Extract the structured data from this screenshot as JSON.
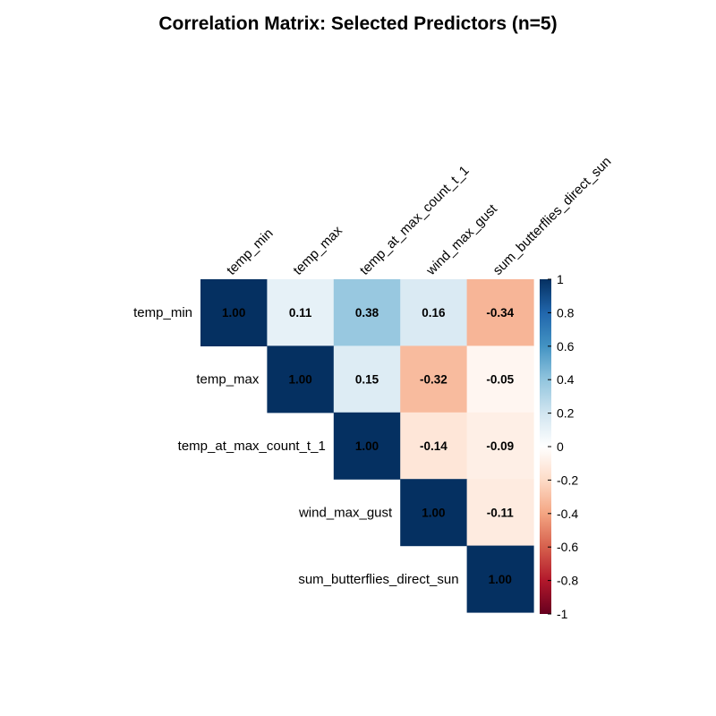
{
  "chart_data": {
    "type": "heatmap",
    "title": "Correlation Matrix: Selected Predictors (n=5)",
    "variables": [
      "temp_min",
      "temp_max",
      "temp_at_max_count_t_1",
      "wind_max_gust",
      "sum_butterflies_direct_sun"
    ],
    "matrix": [
      [
        1.0,
        0.11,
        0.38,
        0.16,
        -0.34
      ],
      [
        0.11,
        1.0,
        0.15,
        -0.32,
        -0.05
      ],
      [
        0.38,
        0.15,
        1.0,
        -0.14,
        -0.09
      ],
      [
        0.16,
        -0.32,
        -0.14,
        1.0,
        -0.11
      ],
      [
        -0.34,
        -0.05,
        -0.09,
        -0.11,
        1.0
      ]
    ],
    "display": "upper-triangle",
    "value_range": [
      -1,
      1
    ],
    "colorbar": {
      "ticks": [
        "1",
        "0.8",
        "0.6",
        "0.4",
        "0.2",
        "0",
        "-0.2",
        "-0.4",
        "-0.6",
        "-0.8",
        "-1"
      ],
      "palette": [
        "#67001F",
        "#B2182B",
        "#D6604D",
        "#F4A582",
        "#FDDBC7",
        "#FFFFFF",
        "#D1E5F0",
        "#92C5DE",
        "#4393C3",
        "#2166AC",
        "#053061"
      ]
    },
    "grid": false,
    "legend_position": "right"
  }
}
